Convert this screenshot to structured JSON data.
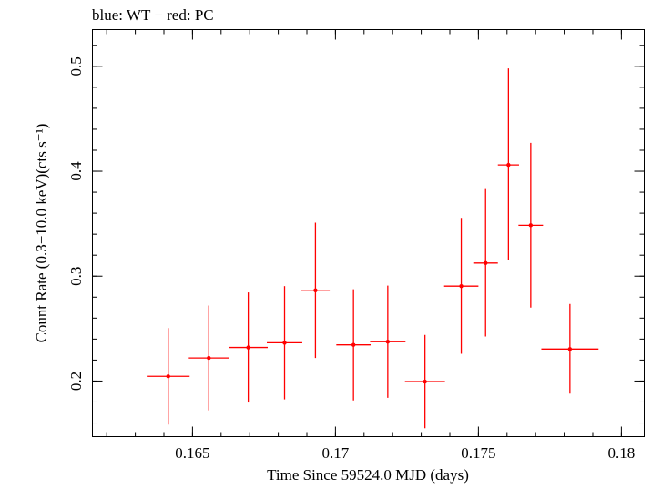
{
  "chart_data": {
    "type": "scatter",
    "title": "blue: WT − red: PC",
    "xlabel": "Time Since 59524.0 MJD (days)",
    "ylabel": "Count Rate (0.3−10.0 keV)(cts s⁻¹)",
    "xlim": [
      0.1615,
      0.1808
    ],
    "ylim": [
      0.147,
      0.535
    ],
    "xticks": [
      {
        "value": 0.165,
        "label": "0.165"
      },
      {
        "value": 0.17,
        "label": "0.17"
      },
      {
        "value": 0.175,
        "label": "0.175"
      },
      {
        "value": 0.18,
        "label": "0.18"
      }
    ],
    "yticks": [
      {
        "value": 0.2,
        "label": "0.2"
      },
      {
        "value": 0.3,
        "label": "0.3"
      },
      {
        "value": 0.4,
        "label": "0.4"
      },
      {
        "value": 0.5,
        "label": "0.5"
      }
    ],
    "x_minor_step": 0.001,
    "y_minor_step": 0.02,
    "grid": false,
    "series": [
      {
        "color": "#ff0000",
        "points": [
          {
            "x": 0.16415,
            "xerr": 0.00075,
            "y": 0.2045,
            "ylo": 0.1585,
            "yhi": 0.2505
          },
          {
            "x": 0.16557,
            "xerr": 0.0007,
            "y": 0.222,
            "ylo": 0.172,
            "yhi": 0.272
          },
          {
            "x": 0.16695,
            "xerr": 0.00068,
            "y": 0.232,
            "ylo": 0.1795,
            "yhi": 0.2845
          },
          {
            "x": 0.16822,
            "xerr": 0.00062,
            "y": 0.2365,
            "ylo": 0.1825,
            "yhi": 0.2905
          },
          {
            "x": 0.1693,
            "xerr": 0.0005,
            "y": 0.2865,
            "ylo": 0.222,
            "yhi": 0.351
          },
          {
            "x": 0.17063,
            "xerr": 0.0006,
            "y": 0.2345,
            "ylo": 0.1815,
            "yhi": 0.2875
          },
          {
            "x": 0.17183,
            "xerr": 0.00062,
            "y": 0.2375,
            "ylo": 0.184,
            "yhi": 0.291
          },
          {
            "x": 0.17313,
            "xerr": 0.0007,
            "y": 0.1995,
            "ylo": 0.155,
            "yhi": 0.244
          },
          {
            "x": 0.1744,
            "xerr": 0.0006,
            "y": 0.2905,
            "ylo": 0.226,
            "yhi": 0.3555
          },
          {
            "x": 0.17525,
            "xerr": 0.00043,
            "y": 0.3125,
            "ylo": 0.2425,
            "yhi": 0.383
          },
          {
            "x": 0.17605,
            "xerr": 0.00037,
            "y": 0.406,
            "ylo": 0.315,
            "yhi": 0.498
          },
          {
            "x": 0.17683,
            "xerr": 0.00043,
            "y": 0.3485,
            "ylo": 0.27,
            "yhi": 0.427
          },
          {
            "x": 0.1782,
            "xerr": 0.001,
            "y": 0.2305,
            "ylo": 0.188,
            "yhi": 0.2735
          }
        ]
      }
    ]
  }
}
